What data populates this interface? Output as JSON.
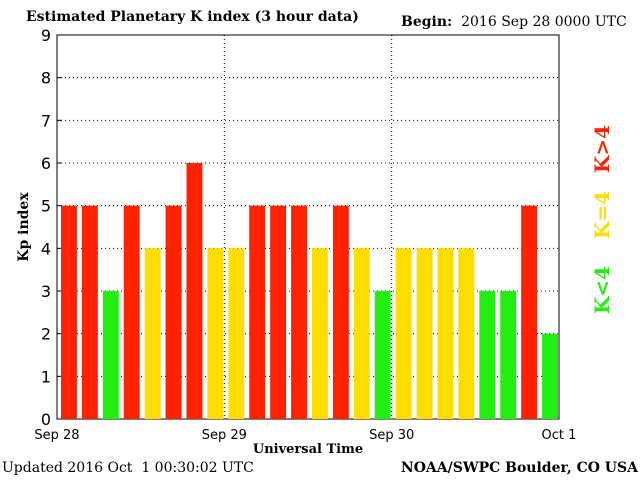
{
  "header": {
    "title": "Estimated Planetary K index (3 hour data)",
    "begin_label": "Begin:",
    "begin_value": "2016 Sep 28 0000 UTC"
  },
  "footer": {
    "updated": "Updated 2016 Oct  1 00:30:02 UTC",
    "credit": "NOAA/SWPC Boulder, CO USA"
  },
  "legend": [
    {
      "label": "K>4",
      "color": "#ff2200"
    },
    {
      "label": "K=4",
      "color": "#ffdd00"
    },
    {
      "label": "K<4",
      "color": "#22ee11"
    }
  ],
  "chart_data": {
    "type": "bar",
    "xlabel": "Universal Time",
    "ylabel": "Kp index",
    "ylim": [
      0,
      9
    ],
    "yticks": [
      0,
      1,
      2,
      3,
      4,
      5,
      6,
      7,
      8,
      9
    ],
    "xtick_labels": [
      "Sep 28",
      "Sep 29",
      "Sep 30",
      "Oct 1"
    ],
    "grid": true,
    "values": [
      5,
      5,
      3,
      5,
      4,
      5,
      6,
      4,
      4,
      5,
      5,
      5,
      4,
      5,
      4,
      3,
      4,
      4,
      4,
      4,
      3,
      3,
      5,
      2
    ],
    "colors": {
      "high": "#ff2200",
      "equal": "#ffdd00",
      "low": "#22ee11"
    }
  }
}
